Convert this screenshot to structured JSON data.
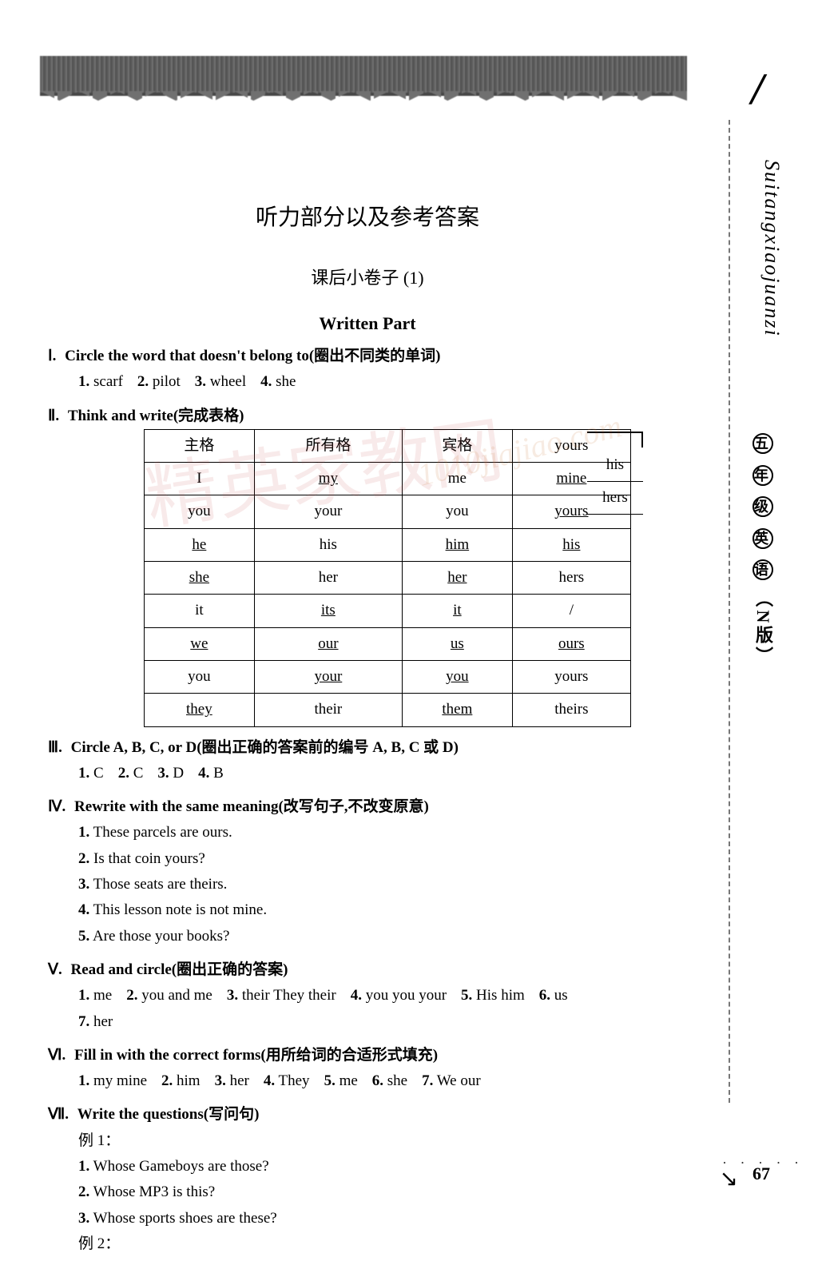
{
  "title": "听力部分以及参考答案",
  "subtitle": "课后小卷子 (1)",
  "part_label": "Written Part",
  "side": {
    "slash": "/",
    "pinyin": "Suitangxiaojuanzi",
    "grade_chars": [
      "五",
      "年",
      "级",
      "英",
      "语"
    ],
    "edition": "（N版）"
  },
  "float": {
    "his": "his",
    "hers": "hers"
  },
  "s1": {
    "rn": "Ⅰ.",
    "head": "Circle the word that doesn't belong to(圈出不同类的单词)",
    "items": [
      {
        "n": "1.",
        "t": "scarf"
      },
      {
        "n": "2.",
        "t": "pilot"
      },
      {
        "n": "3.",
        "t": "wheel"
      },
      {
        "n": "4.",
        "t": "she"
      }
    ]
  },
  "s2": {
    "rn": "Ⅱ.",
    "head": "Think and write(完成表格)",
    "headers": [
      "主格",
      "所有格",
      "宾格",
      ""
    ],
    "header_last": "yours",
    "rows": [
      [
        "I",
        "my",
        "me",
        "mine",
        [
          0,
          1,
          0,
          1
        ]
      ],
      [
        "you",
        "your",
        "you",
        "yours",
        [
          0,
          0,
          0,
          1
        ]
      ],
      [
        "he",
        "his",
        "him",
        "his",
        [
          1,
          0,
          1,
          1
        ]
      ],
      [
        "she",
        "her",
        "her",
        "hers",
        [
          1,
          0,
          1,
          0
        ]
      ],
      [
        "it",
        "its",
        "it",
        "/",
        [
          0,
          1,
          1,
          0
        ]
      ],
      [
        "we",
        "our",
        "us",
        "ours",
        [
          1,
          1,
          1,
          1
        ]
      ],
      [
        "you",
        "your",
        "you",
        "yours",
        [
          0,
          1,
          1,
          0
        ]
      ],
      [
        "they",
        "their",
        "them",
        "theirs",
        [
          1,
          0,
          1,
          0
        ]
      ]
    ]
  },
  "s3": {
    "rn": "Ⅲ.",
    "head": "Circle A, B, C, or D(圈出正确的答案前的编号 A, B, C 或 D)",
    "items": [
      {
        "n": "1.",
        "t": "C"
      },
      {
        "n": "2.",
        "t": "C"
      },
      {
        "n": "3.",
        "t": "D"
      },
      {
        "n": "4.",
        "t": "B"
      }
    ]
  },
  "s4": {
    "rn": "Ⅳ.",
    "head": "Rewrite with the same meaning(改写句子,不改变原意)",
    "lines": [
      {
        "n": "1.",
        "t": "These parcels are ours."
      },
      {
        "n": "2.",
        "t": "Is that coin yours?"
      },
      {
        "n": "3.",
        "t": "Those seats are theirs."
      },
      {
        "n": "4.",
        "t": "This lesson note is not mine."
      },
      {
        "n": "5.",
        "t": "Are those your books?"
      }
    ]
  },
  "s5": {
    "rn": "Ⅴ.",
    "head": "Read and circle(圈出正确的答案)",
    "line1": [
      {
        "n": "1.",
        "t": "me"
      },
      {
        "n": "2.",
        "t": "you and me"
      },
      {
        "n": "3.",
        "t": "their   They   their"
      },
      {
        "n": "4.",
        "t": "you   you   your"
      },
      {
        "n": "5.",
        "t": "His   him"
      },
      {
        "n": "6.",
        "t": "us"
      }
    ],
    "line2": [
      {
        "n": "7.",
        "t": "her"
      }
    ]
  },
  "s6": {
    "rn": "Ⅵ.",
    "head": "Fill in with the correct forms(用所给词的合适形式填充)",
    "items": [
      {
        "n": "1.",
        "t": "my   mine"
      },
      {
        "n": "2.",
        "t": "him"
      },
      {
        "n": "3.",
        "t": "her"
      },
      {
        "n": "4.",
        "t": "They"
      },
      {
        "n": "5.",
        "t": "me"
      },
      {
        "n": "6.",
        "t": "she"
      },
      {
        "n": "7.",
        "t": "We   our"
      }
    ]
  },
  "s7": {
    "rn": "Ⅶ.",
    "head": "Write the questions(写问句)",
    "ex1": "例 1：",
    "lines": [
      {
        "n": "1.",
        "t": "Whose Gameboys are those?"
      },
      {
        "n": "2.",
        "t": "Whose MP3 is this?"
      },
      {
        "n": "3.",
        "t": "Whose sports shoes are these?"
      }
    ],
    "ex2": "例 2："
  },
  "page_number": "67",
  "watermark": "精英家教网",
  "watermark2": "1010jiajiao.com"
}
